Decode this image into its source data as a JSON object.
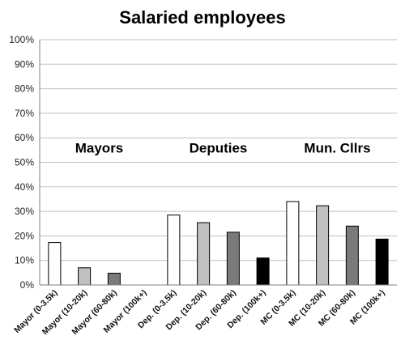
{
  "chart_data": {
    "type": "bar",
    "title": "Salaried employees",
    "xlabel": "",
    "ylabel": "",
    "ylim": [
      0,
      100
    ],
    "y_ticks": [
      "0%",
      "10%",
      "20%",
      "30%",
      "40%",
      "50%",
      "60%",
      "70%",
      "80%",
      "90%",
      "100%"
    ],
    "grid": true,
    "groups": [
      {
        "label": "Mayors",
        "categories": [
          0,
          1,
          2,
          3
        ]
      },
      {
        "label": "Deputies",
        "categories": [
          4,
          5,
          6,
          7
        ]
      },
      {
        "label": "Mun. Cllrs",
        "categories": [
          8,
          9,
          10,
          11
        ]
      }
    ],
    "categories": [
      "Mayor (0-3.5k)",
      "Mayor (10-20k)",
      "Mayor (60-80k)",
      "Mayor (100k+)",
      "Dep. (0-3.5k)",
      "Dep. (10-20k)",
      "Dep. (60-80k)",
      "Dep. (100k+)",
      "MC (0-3.5k)",
      "MC (10-20k)",
      "MC (60-80k)",
      "MC (100k+)"
    ],
    "values": [
      17.3,
      7.0,
      4.8,
      0,
      28.5,
      25.4,
      21.5,
      11.0,
      34.0,
      32.3,
      24.0,
      18.7
    ],
    "bar_colors": [
      "#ffffff",
      "#c0c0c0",
      "#7a7a7a",
      "#000000",
      "#ffffff",
      "#c0c0c0",
      "#7a7a7a",
      "#000000",
      "#ffffff",
      "#c0c0c0",
      "#7a7a7a",
      "#000000"
    ],
    "grid_color": "#bfbfbf"
  }
}
